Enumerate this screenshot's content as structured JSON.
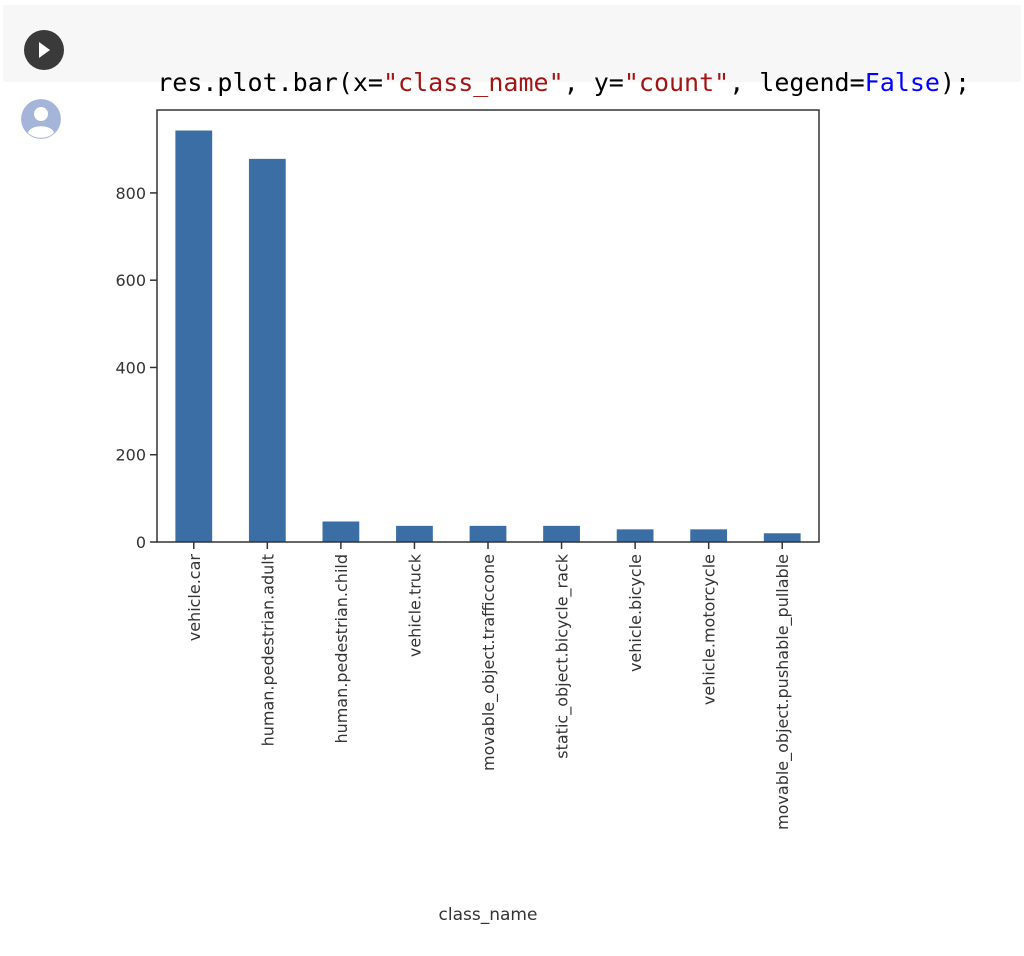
{
  "code_cell": {
    "code_tokens": [
      {
        "text": "res.plot.bar(x=",
        "kind": "plain"
      },
      {
        "text": "\"class_name\"",
        "kind": "str"
      },
      {
        "text": ", y=",
        "kind": "plain"
      },
      {
        "text": "\"count\"",
        "kind": "str"
      },
      {
        "text": ", legend=",
        "kind": "plain"
      },
      {
        "text": "False",
        "kind": "kw"
      },
      {
        "text": ");",
        "kind": "plain"
      }
    ],
    "run_icon": "play-icon",
    "output_icon": "user-avatar-icon"
  },
  "colors": {
    "cell_background": "#f7f7f7",
    "run_button": "#3a3a3a",
    "avatar": "#a5b4d9",
    "bar": "#3a6ea5",
    "string": "#a31515",
    "keyword": "#0000ff"
  },
  "chart_data": {
    "type": "bar",
    "categories": [
      "vehicle.car",
      "human.pedestrian.adult",
      "human.pedestrian.child",
      "vehicle.truck",
      "movable_object.trafficcone",
      "static_object.bicycle_rack",
      "vehicle.bicycle",
      "vehicle.motorcycle",
      "movable_object.pushable_pullable"
    ],
    "values": [
      943,
      878,
      47,
      37,
      37,
      37,
      29,
      29,
      20
    ],
    "xlabel": "class_name",
    "ylabel": "",
    "ylim": [
      0,
      990
    ],
    "yticks": [
      0,
      200,
      400,
      600,
      800
    ],
    "legend": false,
    "grid": false
  }
}
